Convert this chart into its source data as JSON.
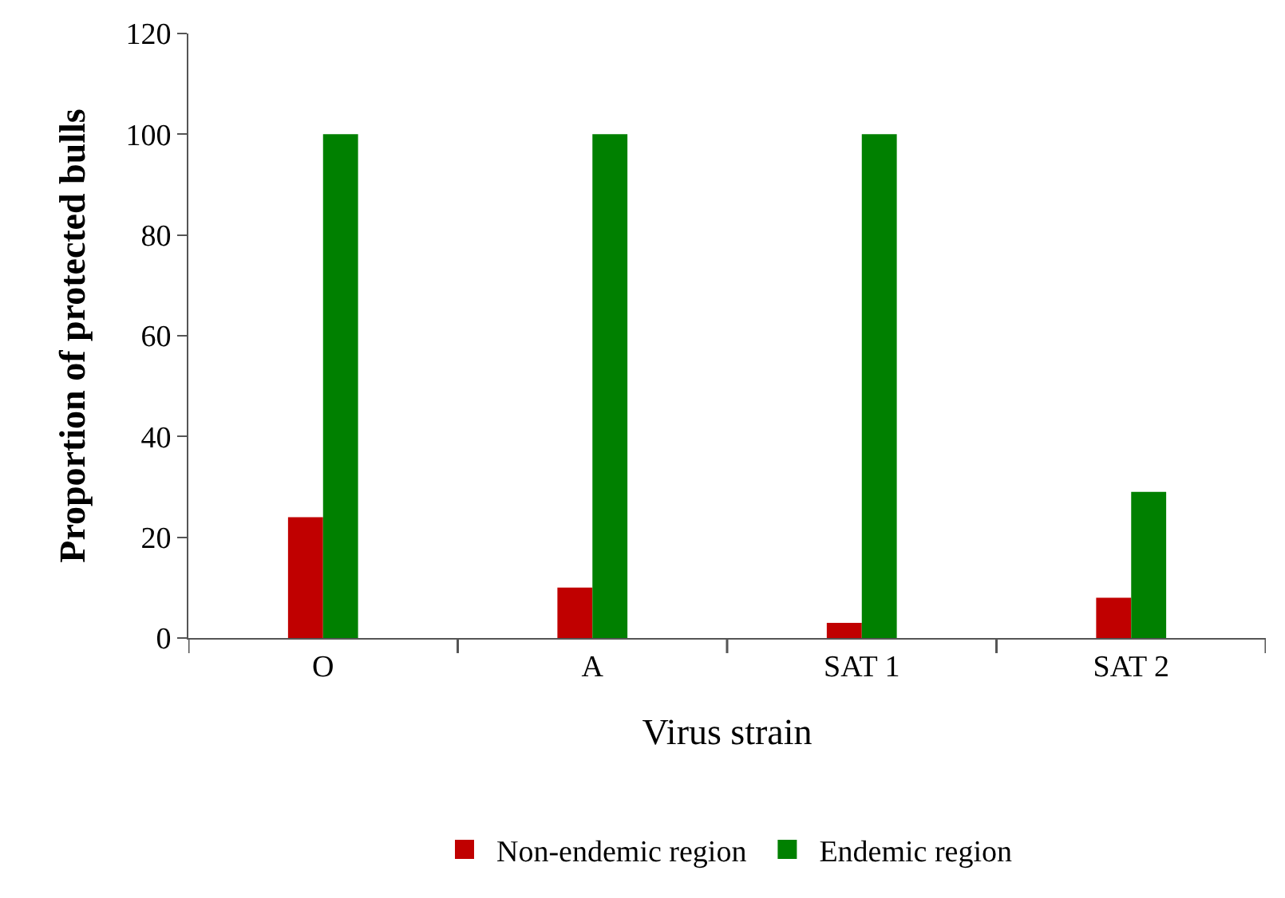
{
  "chart_data": {
    "type": "bar",
    "xlabel": "Virus strain",
    "ylabel": "Proportion of protected bulls",
    "categories": [
      "O",
      "A",
      "SAT 1",
      "SAT 2"
    ],
    "series": [
      {
        "name": "Non-endemic region",
        "color": "#c00000",
        "values": [
          24,
          10,
          3,
          8
        ]
      },
      {
        "name": "Endemic region",
        "color": "#008000",
        "values": [
          100,
          100,
          100,
          29
        ]
      }
    ],
    "ylim": [
      0,
      120
    ],
    "yticks": [
      0,
      20,
      40,
      60,
      80,
      100,
      120
    ],
    "legend": "bottom"
  }
}
